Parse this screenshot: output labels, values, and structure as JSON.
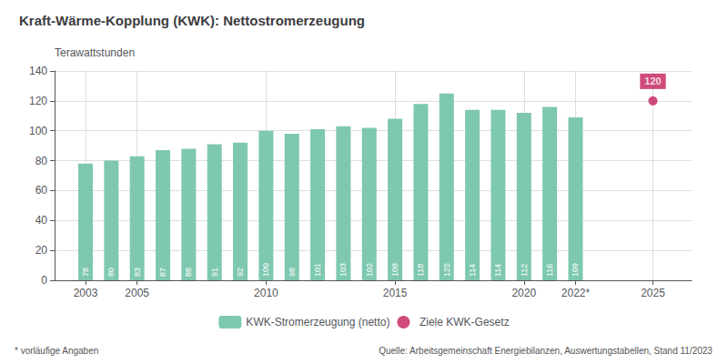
{
  "chart_data": {
    "type": "bar",
    "title": "Kraft-Wärme-Kopplung (KWK): Nettostromerzeugung",
    "ylabel": "Terawattstunden",
    "x": [
      2003,
      2004,
      2005,
      2006,
      2007,
      2008,
      2009,
      2010,
      2011,
      2012,
      2013,
      2014,
      2015,
      2016,
      2017,
      2018,
      2019,
      2020,
      2021,
      2022
    ],
    "series": [
      {
        "name": "KWK-Stromerzeugung (netto)",
        "type": "bar",
        "color": "#7EC8B0",
        "values": [
          78,
          80,
          83,
          87,
          88,
          91,
          92,
          100,
          98,
          101,
          103,
          102,
          108,
          118,
          125,
          114,
          114,
          112,
          116,
          109
        ],
        "data_labels": true
      },
      {
        "name": "Ziele KWK-Gesetz",
        "type": "scatter",
        "color": "#C41E5B",
        "marker": "circle",
        "x": [
          2025
        ],
        "values": [
          120
        ],
        "data_labels": true
      }
    ],
    "xlim": [
      2001.8,
      2026.5
    ],
    "xticks": [
      2003,
      2005,
      2010,
      2015,
      2020,
      {
        "value": 2022,
        "label": "2022*"
      },
      2025
    ],
    "ylim": [
      0,
      140
    ],
    "yticks": [
      0,
      20,
      40,
      60,
      80,
      100,
      120,
      140
    ],
    "grid": true,
    "legend": "bottom",
    "annotations": [
      "* vorläufige Angaben",
      "Quelle: Arbeitsgemeinschaft Energiebilanzen, Auswertungstabellen, Stand 11/2023"
    ]
  }
}
